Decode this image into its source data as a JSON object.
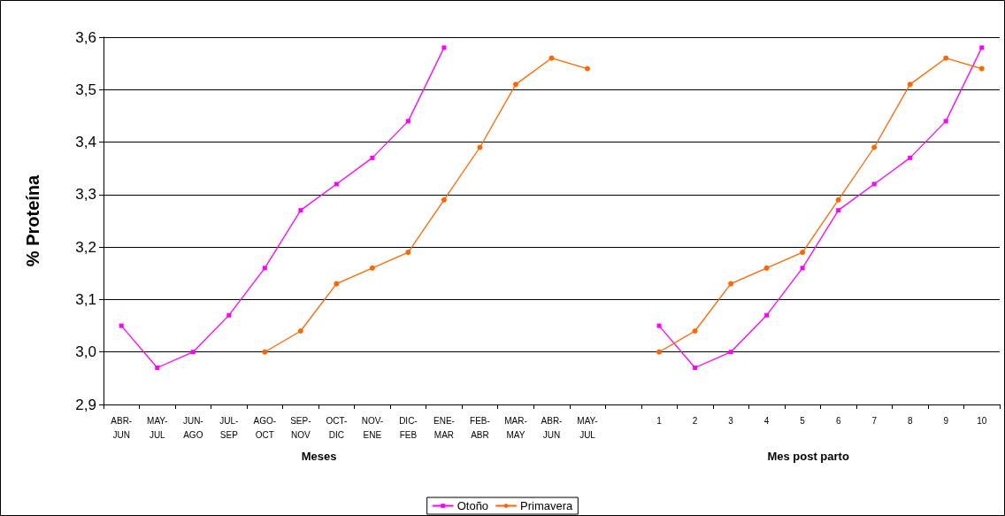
{
  "chart_data": {
    "type": "line",
    "ylabel": "% Proteína",
    "xlabel": "Meses",
    "annotations": [
      "Mes post parto"
    ],
    "categories": [
      "ABR-JUN",
      "MAY-JUL",
      "JUN-AGO",
      "JUL-SEP",
      "AGO-OCT",
      "SEP-NOV",
      "OCT-DIC",
      "NOV-ENE",
      "DIC-FEB",
      "ENE-MAR",
      "FEB-ABR",
      "MAR-MAY",
      "ABR-JUN",
      "MAY-JUL",
      null,
      "1",
      "2",
      "3",
      "4",
      "5",
      "6",
      "7",
      "8",
      "9",
      "10"
    ],
    "series": [
      {
        "name": "Otoño",
        "color": "#ff00ff",
        "marker": "square",
        "values": [
          3.05,
          2.97,
          3.0,
          3.07,
          3.16,
          3.27,
          3.32,
          3.37,
          3.44,
          3.58,
          null,
          null,
          null,
          null,
          null,
          3.05,
          2.97,
          3.0,
          3.07,
          3.16,
          3.27,
          3.32,
          3.37,
          3.44,
          3.58
        ]
      },
      {
        "name": "Primavera",
        "color": "#ff6600",
        "marker": "circle",
        "values": [
          null,
          null,
          null,
          null,
          3.0,
          3.04,
          3.13,
          3.16,
          3.19,
          3.29,
          3.39,
          3.51,
          3.56,
          3.54,
          null,
          3.0,
          3.04,
          3.13,
          3.16,
          3.19,
          3.29,
          3.39,
          3.51,
          3.56,
          3.54
        ]
      }
    ],
    "ylim": [
      2.9,
      3.6
    ],
    "yticks": [
      {
        "value": 2.9,
        "label": "2,9"
      },
      {
        "value": 3.0,
        "label": "3,0"
      },
      {
        "value": 3.1,
        "label": "3,1"
      },
      {
        "value": 3.2,
        "label": "3,2"
      },
      {
        "value": 3.3,
        "label": "3,3"
      },
      {
        "value": 3.4,
        "label": "3,4"
      },
      {
        "value": 3.5,
        "label": "3,5"
      },
      {
        "value": 3.6,
        "label": "3,6"
      }
    ],
    "grid": "y",
    "legend": "bottom",
    "line_style": "solid"
  }
}
